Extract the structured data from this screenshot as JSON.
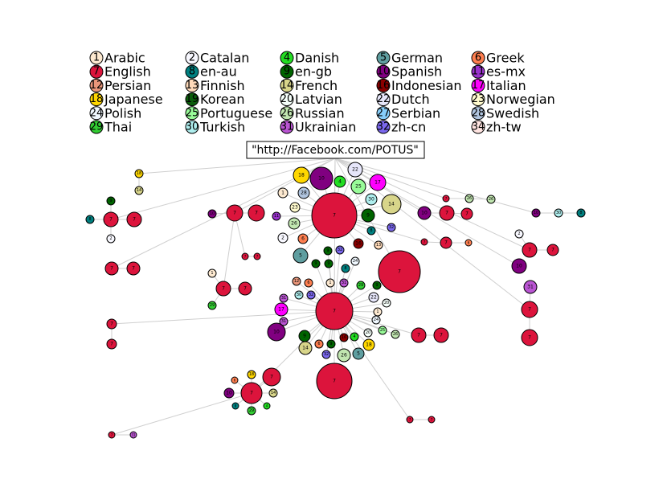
{
  "legend": [
    {
      "id": 1,
      "name": "Arabic",
      "color": "#fde9d0"
    },
    {
      "id": 2,
      "name": "Catalan",
      "color": "#f8f8ff"
    },
    {
      "id": 4,
      "name": "Danish",
      "color": "#22dd22"
    },
    {
      "id": 5,
      "name": "German",
      "color": "#5f9ea0"
    },
    {
      "id": 6,
      "name": "Greek",
      "color": "#ff7f50"
    },
    {
      "id": 7,
      "name": "English",
      "color": "#dc143c"
    },
    {
      "id": 8,
      "name": "en-au",
      "color": "#008080"
    },
    {
      "id": 9,
      "name": "en-gb",
      "color": "#006400"
    },
    {
      "id": 10,
      "name": "Spanish",
      "color": "#800080"
    },
    {
      "id": 11,
      "name": "es-mx",
      "color": "#9932cc"
    },
    {
      "id": 12,
      "name": "Persian",
      "color": "#e9967a"
    },
    {
      "id": 13,
      "name": "Finnish",
      "color": "#ffdab9"
    },
    {
      "id": 14,
      "name": "French",
      "color": "#d8d58a"
    },
    {
      "id": 16,
      "name": "Indonesian",
      "color": "#8b0000"
    },
    {
      "id": 17,
      "name": "Italian",
      "color": "#ff00ff"
    },
    {
      "id": 18,
      "name": "Japanese",
      "color": "#ffd700"
    },
    {
      "id": 19,
      "name": "Korean",
      "color": "#0b5d0b"
    },
    {
      "id": 20,
      "name": "Latvian",
      "color": "#f5fffa"
    },
    {
      "id": 22,
      "name": "Dutch",
      "color": "#e6e6fa"
    },
    {
      "id": 23,
      "name": "Norwegian",
      "color": "#fffacd"
    },
    {
      "id": 24,
      "name": "Polish",
      "color": "#f0f8ff"
    },
    {
      "id": 25,
      "name": "Portuguese",
      "color": "#98fb98"
    },
    {
      "id": 26,
      "name": "Russian",
      "color": "#c1e6b0"
    },
    {
      "id": 27,
      "name": "Serbian",
      "color": "#87cefa"
    },
    {
      "id": 28,
      "name": "Swedish",
      "color": "#b0c4de"
    },
    {
      "id": 29,
      "name": "Thai",
      "color": "#32cd32"
    },
    {
      "id": 30,
      "name": "Turkish",
      "color": "#afeeee"
    },
    {
      "id": 31,
      "name": "Ukrainian",
      "color": "#ba55d3"
    },
    {
      "id": 32,
      "name": "zh-cn",
      "color": "#7b68ee"
    },
    {
      "id": 34,
      "name": "zh-tw",
      "color": "#ffe4e1"
    }
  ],
  "root": {
    "label": "\"http://Facebook.com/POTUS\""
  },
  "nodes": [
    7,
    7,
    7,
    7,
    18,
    10,
    4,
    22,
    25,
    17,
    30,
    14,
    28,
    1,
    23,
    26,
    2,
    6,
    9,
    8,
    32,
    5,
    16,
    13,
    9,
    32,
    9,
    9,
    24,
    8,
    31,
    1,
    6,
    12,
    29,
    9,
    32,
    30,
    22,
    20,
    31,
    17,
    1,
    24,
    31,
    10,
    9,
    16,
    4,
    20,
    25,
    26,
    18,
    5,
    26,
    14,
    6,
    32,
    9,
    7,
    7,
    7,
    7,
    31,
    10,
    7,
    7,
    2,
    10,
    7,
    7,
    7,
    26,
    26,
    10,
    30,
    8,
    7,
    7,
    6,
    7,
    7,
    8,
    9,
    2,
    18,
    14,
    7,
    7,
    10,
    7,
    7,
    11,
    7,
    7,
    7,
    7,
    1,
    29,
    7,
    7,
    7,
    7,
    18,
    6,
    10,
    14,
    8,
    29,
    4,
    7,
    31,
    7,
    7
  ]
}
